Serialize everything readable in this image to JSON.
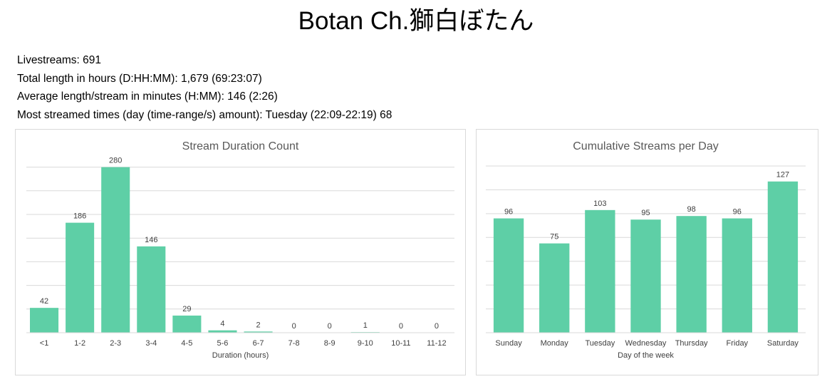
{
  "header": {
    "title": "Botan Ch.獅白ぼたん"
  },
  "stats": [
    "Livestreams: 691",
    "Total length in hours (D:HH:MM): 1,679 (69:23:07)",
    "Average length/stream in minutes (H:MM): 146 (2:26)",
    "Most streamed times (day (time-range/s) amount): Tuesday (22:09-22:19) 68"
  ],
  "colors": {
    "bar": "#5ecfa6",
    "grid": "#d9d9d9",
    "title_text": "#595959",
    "label_text": "#404040"
  },
  "chart_data": [
    {
      "type": "bar",
      "title": "Stream Duration Count",
      "xlabel": "Duration (hours)",
      "ylabel": "",
      "categories": [
        "<1",
        "1-2",
        "2-3",
        "3-4",
        "4-5",
        "5-6",
        "6-7",
        "7-8",
        "8-9",
        "9-10",
        "10-11",
        "11-12"
      ],
      "values": [
        42,
        186,
        280,
        146,
        29,
        4,
        2,
        0,
        0,
        1,
        0,
        0
      ],
      "ylim": [
        0,
        300
      ],
      "grid": true,
      "data_labels": true
    },
    {
      "type": "bar",
      "title": "Cumulative Streams per Day",
      "xlabel": "Day of the week",
      "ylabel": "",
      "categories": [
        "Sunday",
        "Monday",
        "Tuesday",
        "Wednesday",
        "Thursday",
        "Friday",
        "Saturday"
      ],
      "values": [
        96,
        75,
        103,
        95,
        98,
        96,
        127
      ],
      "ylim": [
        0,
        140
      ],
      "grid": true,
      "data_labels": true
    }
  ]
}
